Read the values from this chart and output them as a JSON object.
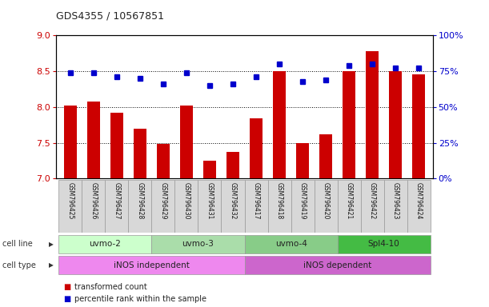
{
  "title": "GDS4355 / 10567851",
  "samples": [
    "GSM796425",
    "GSM796426",
    "GSM796427",
    "GSM796428",
    "GSM796429",
    "GSM796430",
    "GSM796431",
    "GSM796432",
    "GSM796417",
    "GSM796418",
    "GSM796419",
    "GSM796420",
    "GSM796421",
    "GSM796422",
    "GSM796423",
    "GSM796424"
  ],
  "transformed_count": [
    8.02,
    8.08,
    7.92,
    7.7,
    7.48,
    8.02,
    7.25,
    7.37,
    7.84,
    8.5,
    7.5,
    7.62,
    8.5,
    8.78,
    8.5,
    8.46
  ],
  "percentile_rank": [
    74,
    74,
    71,
    70,
    66,
    74,
    65,
    66,
    71,
    80,
    68,
    69,
    79,
    80,
    77,
    77
  ],
  "bar_color": "#cc0000",
  "dot_color": "#0000cc",
  "ylim_left": [
    7,
    9
  ],
  "ylim_right": [
    0,
    100
  ],
  "yticks_left": [
    7,
    7.5,
    8,
    8.5,
    9
  ],
  "yticks_right": [
    0,
    25,
    50,
    75,
    100
  ],
  "ytick_labels_right": [
    "0%",
    "25%",
    "50%",
    "75%",
    "100%"
  ],
  "cell_lines": [
    {
      "label": "uvmo-2",
      "start": 0,
      "end": 3
    },
    {
      "label": "uvmo-3",
      "start": 4,
      "end": 7
    },
    {
      "label": "uvmo-4",
      "start": 8,
      "end": 11
    },
    {
      "label": "Spl4-10",
      "start": 12,
      "end": 15
    }
  ],
  "cell_line_colors": [
    "#ccffcc",
    "#aaddaa",
    "#88cc88",
    "#44bb44"
  ],
  "cell_types": [
    {
      "label": "iNOS independent",
      "start": 0,
      "end": 7
    },
    {
      "label": "iNOS dependent",
      "start": 8,
      "end": 15
    }
  ],
  "cell_type_colors": [
    "#ee88ee",
    "#cc66cc"
  ],
  "cell_line_label": "cell line",
  "cell_type_label": "cell type",
  "legend_bar_label": "transformed count",
  "legend_dot_label": "percentile rank within the sample",
  "background_color": "#ffffff",
  "grid_color": "#000000",
  "tick_color_left": "#cc0000",
  "tick_color_right": "#0000cc",
  "grid_dotted_values": [
    7.5,
    8.0,
    8.5
  ],
  "xlim": [
    -0.6,
    15.6
  ]
}
